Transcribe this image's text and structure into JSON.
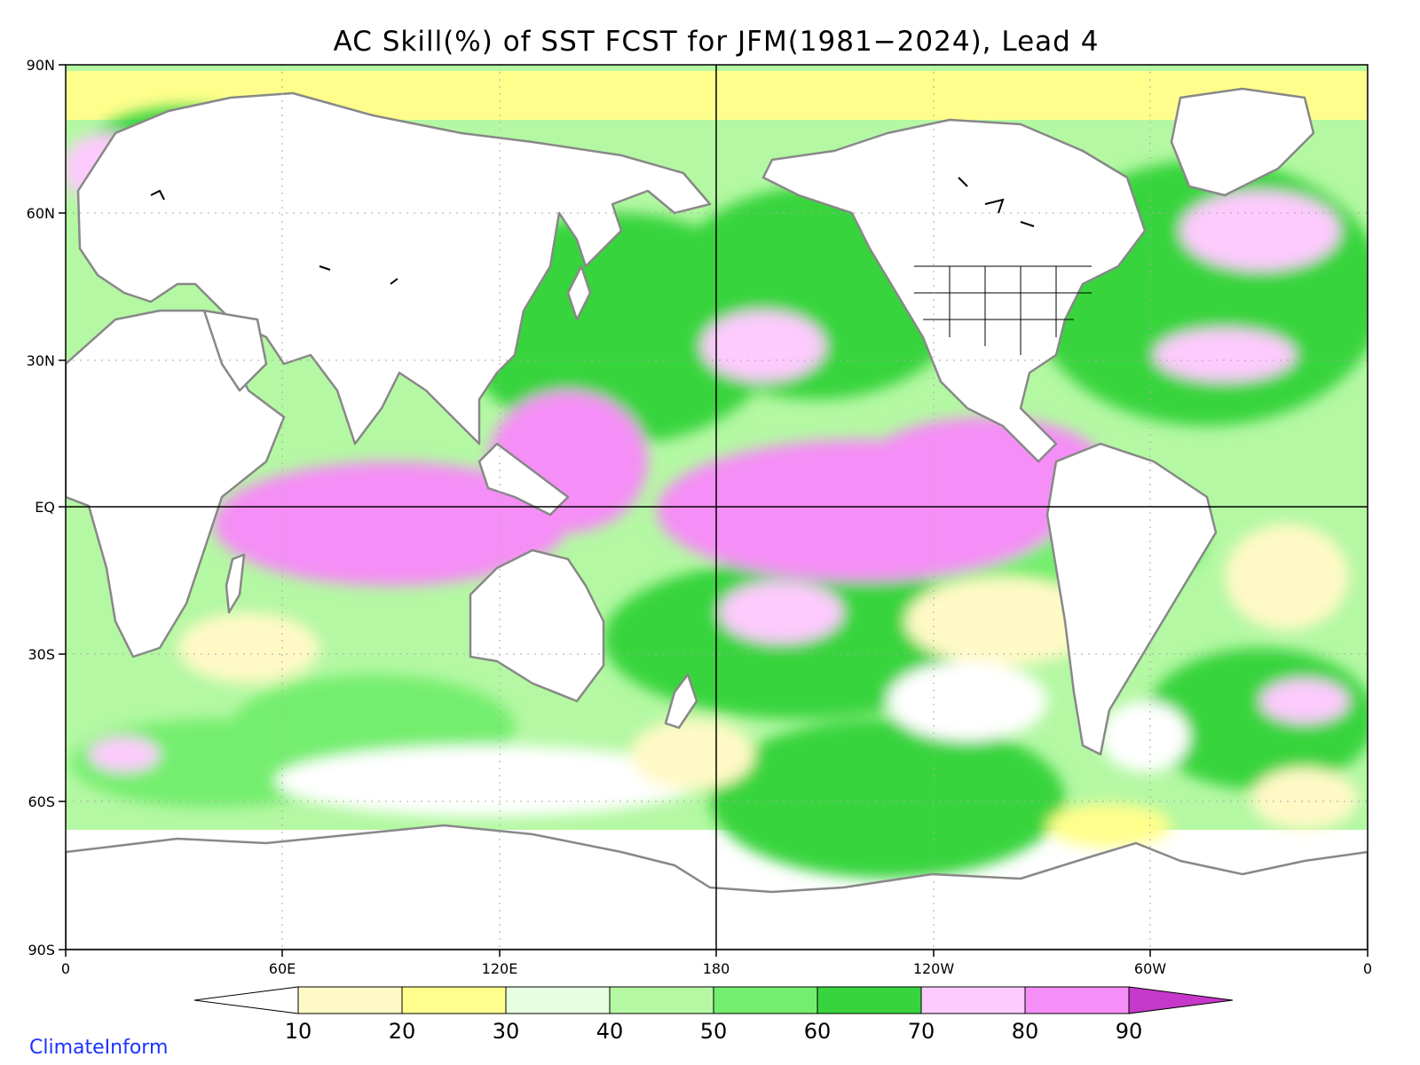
{
  "title": "AC Skill(%) of SST FCST for JFM(1981−2024), Lead 4",
  "credit": "ClimateInform",
  "axes": {
    "y_ticks": [
      "90N",
      "60N",
      "30N",
      "EQ",
      "30S",
      "60S",
      "90S"
    ],
    "x_ticks": [
      "0",
      "60E",
      "120E",
      "180",
      "120W",
      "60W",
      "0"
    ]
  },
  "colorbar": {
    "labels": [
      "10",
      "20",
      "30",
      "40",
      "50",
      "60",
      "70",
      "80",
      "90"
    ],
    "colors": [
      "#ffffff",
      "#fff9c6",
      "#fffe8c",
      "#e6ffe1",
      "#b4f8a3",
      "#74ee6e",
      "#37d43d",
      "#fdcbfd",
      "#f58ef6",
      "#c538c9"
    ]
  },
  "colors": {
    "land_fill": "#ffffff",
    "coastline": "#888888",
    "lakes": "#000000",
    "frame": "#000000",
    "grid": "#aaaaaa"
  }
}
